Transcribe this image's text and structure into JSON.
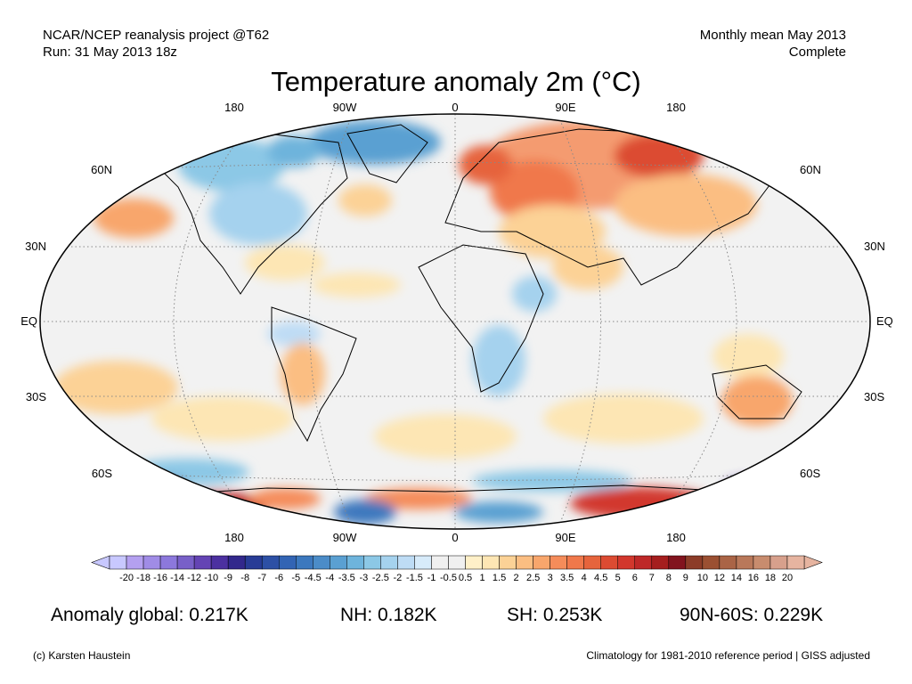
{
  "header": {
    "left_line1": "NCAR/NCEP reanalysis project @T62",
    "left_line2": "Run: 31 May 2013 18z",
    "right_line1": "Monthly mean May 2013",
    "right_line2": "Complete"
  },
  "title": "Temperature anomaly 2m (°C)",
  "map": {
    "top_lon_labels": [
      "180",
      "90W",
      "0",
      "90E",
      "180"
    ],
    "bottom_lon_labels": [
      "180",
      "90W",
      "0",
      "90E",
      "180"
    ],
    "left_lat_labels": [
      "60N",
      "30N",
      "EQ",
      "30S",
      "60S"
    ],
    "right_lat_labels": [
      "60N",
      "30N",
      "EQ",
      "30S",
      "60S"
    ]
  },
  "colorbar": {
    "ticks": [
      "-20",
      "-18",
      "-16",
      "-14",
      "-12",
      "-10",
      "-9",
      "-8",
      "-7",
      "-6",
      "-5",
      "-4.5",
      "-4",
      "-3.5",
      "-3",
      "-2.5",
      "-2",
      "-1.5",
      "-1",
      "-0.5",
      "0.5",
      "1",
      "1.5",
      "2",
      "2.5",
      "3",
      "3.5",
      "4",
      "4.5",
      "5",
      "6",
      "7",
      "8",
      "9",
      "10",
      "12",
      "14",
      "16",
      "18",
      "20"
    ],
    "colors": [
      "#c8c8ff",
      "#b4a0f0",
      "#a08ce6",
      "#8c78dc",
      "#7860c8",
      "#6444b4",
      "#4c30a0",
      "#32288c",
      "#283c96",
      "#2d50a5",
      "#3264b4",
      "#3c78be",
      "#4b8cc8",
      "#5aa0d2",
      "#6eb4dc",
      "#8cc8e6",
      "#a5d2ee",
      "#bedcf5",
      "#d7ebfa",
      "#f0f0f0",
      "#f0f0f0",
      "#fff0c8",
      "#fde6b4",
      "#fcd296",
      "#fbbe82",
      "#f8a66c",
      "#f58c5a",
      "#f0784b",
      "#e6643c",
      "#dc4b32",
      "#d2372d",
      "#be2828",
      "#a51e1e",
      "#82141e",
      "#8c3c28",
      "#9b5032",
      "#aa6446",
      "#b9785a",
      "#c88c6e",
      "#d7a08c",
      "#e6b4a0"
    ],
    "left_arrow_color": "#c8c8ff",
    "right_arrow_color": "#e6b4a0"
  },
  "stats": {
    "global": "Anomaly global: 0.217K",
    "nh": "NH: 0.182K",
    "sh": "SH: 0.253K",
    "band": "90N-60S: 0.229K"
  },
  "footer": {
    "left": "(c) Karsten Haustein",
    "right": "Climatology for 1981-2010 reference period | GISS adjusted"
  }
}
